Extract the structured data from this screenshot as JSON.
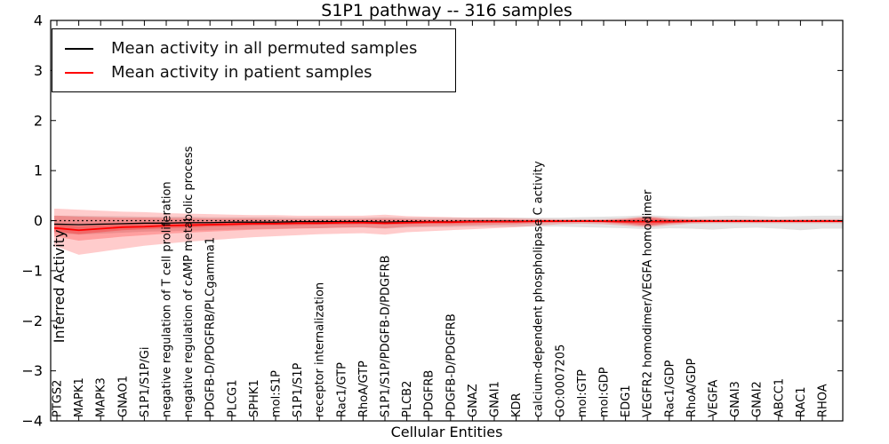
{
  "chart_data": {
    "type": "line",
    "title": "S1P1 pathway -- 316 samples",
    "xlabel": "Cellular Entities",
    "ylabel": "Inferred Activity",
    "ylim": [
      -4,
      4
    ],
    "yticks": [
      -4,
      -3,
      -2,
      -1,
      0,
      1,
      2,
      3,
      4
    ],
    "grid": false,
    "legend_position": "upper left",
    "background": "#ffffff",
    "zero_line": {
      "y": 0,
      "style": "dotted",
      "color": "#000000"
    },
    "categories": [
      "PTGS2",
      "MAPK1",
      "MAPK3",
      "GNAO1",
      "S1P1/S1P/Gi",
      "negative regulation of T cell proliferation",
      "negative regulation of cAMP metabolic process",
      "PDGFB-D/PDGFRB/PLCgamma1",
      "PLCG1",
      "SPHK1",
      "mol:S1P",
      "S1P1/S1P",
      "receptor internalization",
      "Rac1/GTP",
      "RhoA/GTP",
      "S1P1/S1P/PDGFB-D/PDGFRB",
      "PLCB2",
      "PDGFRB",
      "PDGFB-D/PDGFRB",
      "GNAZ",
      "GNAI1",
      "KDR",
      "calcium-dependent phospholipase C activity",
      "GO:0007205",
      "mol:GTP",
      "mol:GDP",
      "EDG1",
      "VEGFR2 homodimer/VEGFA homodimer",
      "Rac1/GDP",
      "RhoA/GDP",
      "VEGFA",
      "GNAI3",
      "GNAI2",
      "ABCC1",
      "RAC1",
      "RHOA"
    ],
    "series": [
      {
        "name": "Mean activity in all permuted samples",
        "color": "#000000",
        "width": 1.3,
        "values": [
          -0.07,
          -0.08,
          -0.07,
          -0.06,
          -0.05,
          -0.05,
          -0.04,
          -0.04,
          -0.03,
          -0.03,
          -0.03,
          -0.02,
          -0.02,
          -0.02,
          -0.02,
          -0.03,
          -0.02,
          -0.02,
          -0.02,
          -0.01,
          -0.01,
          -0.01,
          -0.01,
          -0.01,
          -0.01,
          -0.01,
          -0.01,
          -0.02,
          -0.01,
          -0.01,
          -0.01,
          -0.01,
          -0.01,
          -0.01,
          -0.01,
          -0.01
        ]
      },
      {
        "name": "Mean activity in patient samples",
        "color": "#ff0000",
        "width": 1.8,
        "values": [
          -0.15,
          -0.19,
          -0.16,
          -0.13,
          -0.12,
          -0.1,
          -0.09,
          -0.08,
          -0.07,
          -0.06,
          -0.06,
          -0.05,
          -0.05,
          -0.04,
          -0.04,
          -0.05,
          -0.04,
          -0.03,
          -0.03,
          -0.02,
          -0.02,
          -0.02,
          -0.01,
          -0.01,
          -0.01,
          -0.01,
          -0.02,
          -0.02,
          -0.02,
          -0.01,
          -0.01,
          -0.01,
          -0.01,
          -0.01,
          -0.01,
          -0.01
        ]
      }
    ],
    "bands": [
      {
        "name": "permuted-std",
        "color": "rgba(60,60,60,0.14)",
        "upper": [
          0.1,
          0.1,
          0.09,
          0.09,
          0.08,
          0.08,
          0.08,
          0.07,
          0.07,
          0.07,
          0.07,
          0.06,
          0.06,
          0.06,
          0.06,
          0.07,
          0.06,
          0.06,
          0.06,
          0.06,
          0.06,
          0.06,
          0.06,
          0.06,
          0.07,
          0.08,
          0.09,
          0.11,
          0.09,
          0.08,
          0.09,
          0.1,
          0.09,
          0.08,
          0.09,
          0.1
        ],
        "lower": [
          -0.25,
          -0.28,
          -0.26,
          -0.24,
          -0.22,
          -0.21,
          -0.2,
          -0.19,
          -0.18,
          -0.17,
          -0.16,
          -0.15,
          -0.15,
          -0.14,
          -0.14,
          -0.16,
          -0.14,
          -0.13,
          -0.13,
          -0.12,
          -0.12,
          -0.12,
          -0.12,
          -0.12,
          -0.13,
          -0.14,
          -0.15,
          -0.17,
          -0.15,
          -0.16,
          -0.18,
          -0.15,
          -0.14,
          -0.16,
          -0.19,
          -0.16
        ]
      },
      {
        "name": "patient-std-outer",
        "color": "rgba(255,0,0,0.20)",
        "upper": [
          0.24,
          0.22,
          0.2,
          0.18,
          0.17,
          0.15,
          0.14,
          0.13,
          0.12,
          0.11,
          0.11,
          0.1,
          0.1,
          0.1,
          0.1,
          0.12,
          0.09,
          0.08,
          0.07,
          0.06,
          0.06,
          0.05,
          0.04,
          0.03,
          0.03,
          0.03,
          0.05,
          0.09,
          0.05,
          0.04,
          0.03,
          0.03,
          0.03,
          0.03,
          0.03,
          0.03
        ],
        "lower": [
          -0.52,
          -0.68,
          -0.62,
          -0.56,
          -0.5,
          -0.46,
          -0.42,
          -0.39,
          -0.36,
          -0.33,
          -0.31,
          -0.29,
          -0.27,
          -0.26,
          -0.25,
          -0.28,
          -0.23,
          -0.21,
          -0.19,
          -0.17,
          -0.15,
          -0.13,
          -0.1,
          -0.07,
          -0.06,
          -0.07,
          -0.1,
          -0.13,
          -0.09,
          -0.06,
          -0.05,
          -0.05,
          -0.05,
          -0.05,
          -0.05,
          -0.05
        ]
      },
      {
        "name": "patient-std-inner",
        "color": "rgba(255,0,0,0.22)",
        "upper": [
          0.1,
          0.08,
          0.07,
          0.06,
          0.06,
          0.05,
          0.05,
          0.04,
          0.04,
          0.04,
          0.03,
          0.03,
          0.03,
          0.03,
          0.03,
          0.04,
          0.03,
          0.02,
          0.02,
          0.02,
          0.02,
          0.02,
          0.01,
          0.01,
          0.01,
          0.01,
          0.03,
          0.07,
          0.03,
          0.02,
          0.01,
          0.01,
          0.01,
          0.01,
          0.01,
          0.01
        ],
        "lower": [
          -0.32,
          -0.4,
          -0.36,
          -0.32,
          -0.29,
          -0.26,
          -0.24,
          -0.22,
          -0.2,
          -0.18,
          -0.17,
          -0.16,
          -0.15,
          -0.14,
          -0.13,
          -0.15,
          -0.12,
          -0.11,
          -0.1,
          -0.09,
          -0.08,
          -0.07,
          -0.05,
          -0.04,
          -0.03,
          -0.04,
          -0.07,
          -0.11,
          -0.06,
          -0.04,
          -0.03,
          -0.03,
          -0.03,
          -0.03,
          -0.03,
          -0.03
        ]
      },
      {
        "name": "patient-sem",
        "color": "rgba(255,0,0,0.25)",
        "upper": [
          -0.08,
          -0.11,
          -0.09,
          -0.07,
          -0.06,
          -0.05,
          -0.04,
          -0.04,
          -0.03,
          -0.02,
          -0.02,
          -0.01,
          -0.01,
          0.0,
          0.0,
          -0.01,
          0.0,
          0.0,
          0.0,
          0.0,
          0.0,
          0.0,
          0.0,
          0.0,
          0.0,
          0.0,
          0.02,
          0.05,
          0.02,
          0.01,
          0.0,
          0.0,
          0.0,
          0.0,
          0.0,
          0.0
        ],
        "lower": [
          -0.22,
          -0.27,
          -0.23,
          -0.19,
          -0.17,
          -0.15,
          -0.14,
          -0.12,
          -0.11,
          -0.1,
          -0.09,
          -0.09,
          -0.08,
          -0.08,
          -0.07,
          -0.08,
          -0.07,
          -0.06,
          -0.06,
          -0.05,
          -0.04,
          -0.04,
          -0.03,
          -0.02,
          -0.02,
          -0.03,
          -0.05,
          -0.09,
          -0.05,
          -0.03,
          -0.02,
          -0.02,
          -0.03,
          -0.02,
          -0.02,
          -0.02
        ]
      }
    ]
  }
}
